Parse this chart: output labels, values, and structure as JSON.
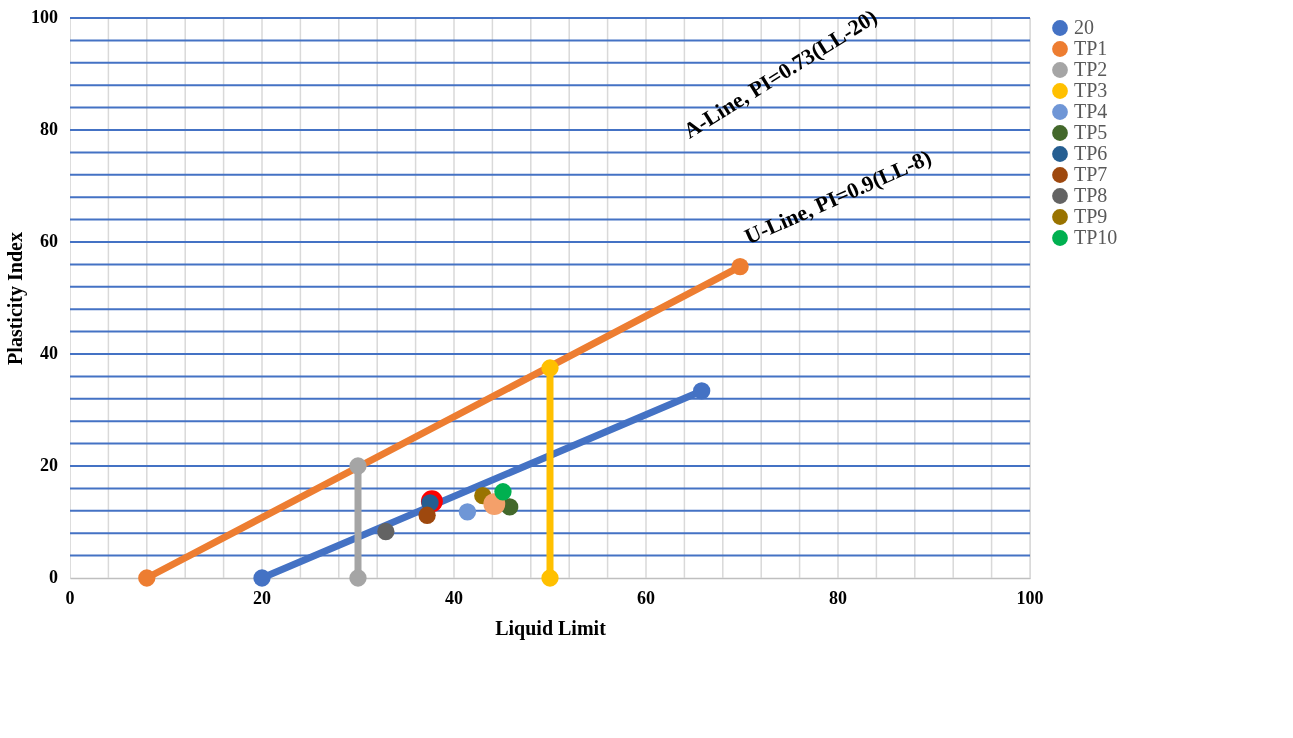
{
  "chart_data": {
    "type": "scatter",
    "xlabel": "Liquid Limit",
    "ylabel": "Plasticity Index",
    "xlim": [
      0,
      100
    ],
    "ylim": [
      0,
      100
    ],
    "xticks": [
      0,
      {
        "value": 4,
        "label": null
      },
      {
        "value": 8,
        "label": null
      },
      {
        "value": 12,
        "label": null
      },
      {
        "value": 16,
        "label": null
      },
      20,
      {
        "value": 24,
        "label": null
      },
      {
        "value": 28,
        "label": null
      },
      {
        "value": 32,
        "label": null
      },
      {
        "value": 36,
        "label": null
      },
      40,
      {
        "value": 44,
        "label": null
      },
      {
        "value": 48,
        "label": null
      },
      {
        "value": 52,
        "label": null
      },
      {
        "value": 56,
        "label": null
      },
      60,
      {
        "value": 64,
        "label": null
      },
      {
        "value": 68,
        "label": null
      },
      {
        "value": 72,
        "label": null
      },
      {
        "value": 76,
        "label": null
      },
      80,
      {
        "value": 84,
        "label": null
      },
      {
        "value": 88,
        "label": null
      },
      {
        "value": 92,
        "label": null
      },
      {
        "value": 96,
        "label": null
      },
      100
    ],
    "yticks": [
      0,
      {
        "value": 4,
        "label": null
      },
      {
        "value": 8,
        "label": null
      },
      {
        "value": 12,
        "label": null
      },
      {
        "value": 16,
        "label": null
      },
      20,
      {
        "value": 24,
        "label": null
      },
      {
        "value": 28,
        "label": null
      },
      {
        "value": 32,
        "label": null
      },
      {
        "value": 36,
        "label": null
      },
      40,
      {
        "value": 44,
        "label": null
      },
      {
        "value": 48,
        "label": null
      },
      {
        "value": 52,
        "label": null
      },
      {
        "value": 56,
        "label": null
      },
      60,
      {
        "value": 64,
        "label": null
      },
      {
        "value": 68,
        "label": null
      },
      {
        "value": 72,
        "label": null
      },
      {
        "value": 76,
        "label": null
      },
      80,
      {
        "value": 84,
        "label": null
      },
      {
        "value": 88,
        "label": null
      },
      {
        "value": 92,
        "label": null
      },
      {
        "value": 96,
        "label": null
      },
      100
    ],
    "grid": true,
    "legend": "right",
    "marker": "circle",
    "annotations": [
      "A-Line, PI=0.73(LL-20)",
      "U-Line, PI=0.9(LL-8)"
    ],
    "series": [
      {
        "name": "20",
        "type": "line",
        "color": "#4472c4",
        "x": [
          20,
          65.8
        ],
        "values": [
          0,
          33.4
        ]
      },
      {
        "name": "TP1",
        "type": "line",
        "color": "#ed7d31",
        "x": [
          8,
          69.8
        ],
        "values": [
          0,
          55.6
        ]
      },
      {
        "name": "TP2",
        "type": "line",
        "color": "#a5a5a5",
        "x": [
          30,
          30
        ],
        "values": [
          0,
          20
        ]
      },
      {
        "name": "TP3",
        "type": "line",
        "color": "#ffc000",
        "x": [
          50,
          50
        ],
        "values": [
          0,
          37.5
        ]
      },
      {
        "name": "TP4",
        "color": "#6f96d6",
        "x": [
          41.4
        ],
        "values": [
          11.8
        ]
      },
      {
        "name": "TP5",
        "color": "#43682b",
        "x": [
          45.8
        ],
        "values": [
          12.7
        ]
      },
      {
        "color": "#ff0000",
        "x": [
          37.7
        ],
        "values": [
          13.7
        ]
      },
      {
        "name": "TP6",
        "color": "#255e91",
        "x": [
          37.5
        ],
        "values": [
          13.4
        ]
      },
      {
        "name": "TP7",
        "color": "#9e480e",
        "x": [
          37.2
        ],
        "values": [
          11.2
        ]
      },
      {
        "name": "TP8",
        "color": "#636363",
        "x": [
          32.9
        ],
        "values": [
          8.3
        ]
      },
      {
        "name": "TP9",
        "color": "#997300",
        "x": [
          43.0
        ],
        "values": [
          14.7
        ]
      },
      {
        "color": "#f4a06a",
        "x": [
          44.2
        ],
        "values": [
          13.2
        ]
      },
      {
        "name": "TP10",
        "color": "#00b050",
        "x": [
          45.1
        ],
        "values": [
          15.4
        ]
      }
    ]
  }
}
